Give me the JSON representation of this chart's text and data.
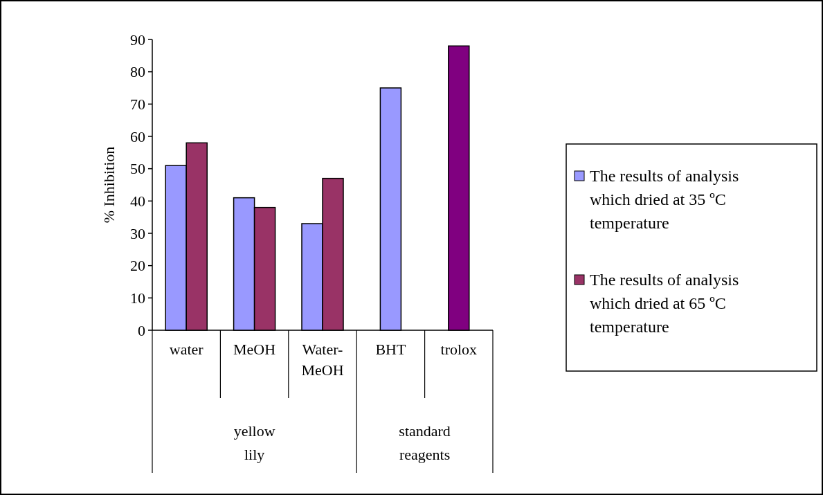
{
  "chart_data": {
    "type": "bar",
    "ylabel": "% Inhibition",
    "categories": [
      "water",
      "MeOH",
      "Water-MeOH",
      "BHT",
      "trolox"
    ],
    "series": [
      {
        "name": "The results of analysis which dried at 35 ºC temperature",
        "color": "#9999ff",
        "values": [
          51,
          41,
          33,
          75,
          null
        ]
      },
      {
        "name": "The results of analysis which dried at 65 ºC temperature",
        "color": "#993366",
        "colors": [
          "#993366",
          "#993366",
          "#993366",
          null,
          "#800080"
        ],
        "values": [
          58,
          38,
          47,
          null,
          88
        ]
      }
    ],
    "annotations": [
      "yellow lily",
      "standard reagents"
    ],
    "ylim": [
      0,
      90
    ],
    "yticks": [
      0,
      10,
      20,
      30,
      40,
      50,
      60,
      70,
      80,
      90
    ],
    "grid": false,
    "legend": "right"
  }
}
